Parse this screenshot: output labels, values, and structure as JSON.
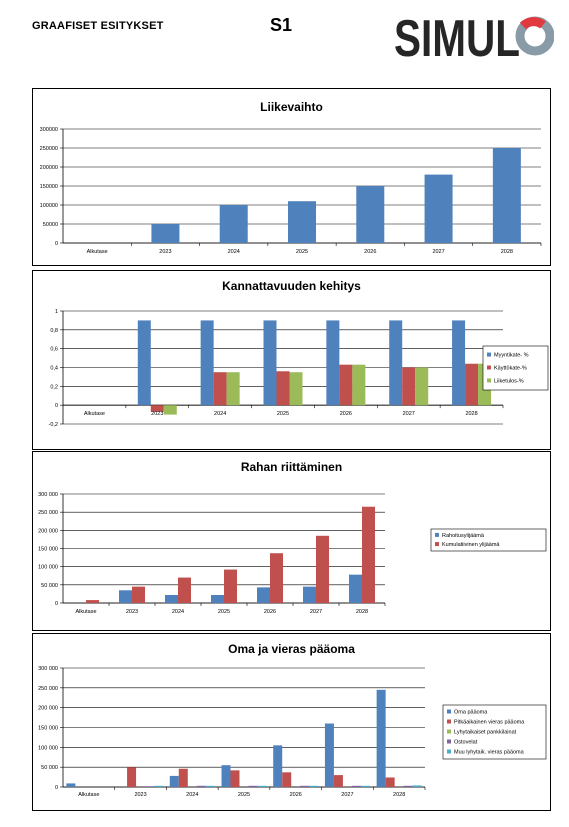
{
  "header": {
    "left_title": "GRAAFISET ESITYKSET",
    "center_title": "S1",
    "logo_text": "SIMUL",
    "logo_mark": "O"
  },
  "colors": {
    "blue": "#4F81BD",
    "red": "#C0504D",
    "green": "#9BBB59",
    "purple": "#8064A2",
    "cyan": "#4BACC6",
    "logo_text": "#262626",
    "logo_red": "#E2383F",
    "logo_gray": "#8A9BA8"
  },
  "chart_data": [
    {
      "type": "bar",
      "title": "Liikevaihto",
      "categories": [
        "Alkutase",
        "2023",
        "2024",
        "2025",
        "2026",
        "2027",
        "2028"
      ],
      "series": [
        {
          "values": [
            0,
            50000,
            100000,
            110000,
            150000,
            180000,
            250000
          ]
        }
      ],
      "yticks": [
        "0",
        "50000",
        "100000",
        "150000",
        "200000",
        "250000",
        "300000"
      ],
      "ylim": [
        0,
        300000
      ],
      "grid": true,
      "legend": "none"
    },
    {
      "type": "bar",
      "title": "Kannattavuuden kehitys",
      "categories": [
        "Alkutase",
        "2023",
        "2024",
        "2025",
        "2026",
        "2027",
        "2028"
      ],
      "series": [
        {
          "name": "Myyntikate- %",
          "values": [
            0,
            0.9,
            0.9,
            0.9,
            0.9,
            0.9,
            0.9
          ]
        },
        {
          "name": "Käyttökate-%",
          "values": [
            0,
            -0.07,
            0.35,
            0.36,
            0.43,
            0.4,
            0.44
          ]
        },
        {
          "name": "Liiketulos-%",
          "values": [
            0,
            -0.1,
            0.35,
            0.35,
            0.43,
            0.4,
            0.44
          ]
        }
      ],
      "yticks": [
        "-0,2",
        "0",
        "0,2",
        "0,4",
        "0,6",
        "0,8",
        "1"
      ],
      "ylim": [
        -0.2,
        1
      ],
      "grid": true,
      "legend": "right"
    },
    {
      "type": "bar",
      "title": "Rahan riittäminen",
      "categories": [
        "Alkutase",
        "2023",
        "2024",
        "2025",
        "2026",
        "2027",
        "2028"
      ],
      "series": [
        {
          "name": "Rahoitusylijäämä",
          "values": [
            0,
            35000,
            22000,
            22000,
            43000,
            45000,
            78000
          ]
        },
        {
          "name": "Kumulatiivinen ylijäämä",
          "values": [
            8000,
            45000,
            70000,
            92000,
            137000,
            185000,
            265000
          ]
        }
      ],
      "yticks": [
        "0",
        "50 000",
        "100 000",
        "150 000",
        "200 000",
        "250 000",
        "300 000"
      ],
      "ylim": [
        0,
        300000
      ],
      "grid": true,
      "legend": "right"
    },
    {
      "type": "bar",
      "title": "Oma ja vieras pääoma",
      "categories": [
        "Alkutase",
        "2023",
        "2024",
        "2025",
        "2026",
        "2027",
        "2028"
      ],
      "series": [
        {
          "name": "Oma pääoma",
          "values": [
            9000,
            0,
            28000,
            55000,
            105000,
            160000,
            245000
          ]
        },
        {
          "name": "Pitkäaikainen vieras pääoma",
          "values": [
            0,
            50000,
            46000,
            42000,
            37000,
            30000,
            24000
          ]
        },
        {
          "name": "Lyhytaikaiset pankkilainat",
          "values": [
            0,
            0,
            0,
            0,
            0,
            0,
            0
          ]
        },
        {
          "name": "Ostovelat",
          "values": [
            0,
            2000,
            3000,
            3000,
            3000,
            3000,
            3000
          ]
        },
        {
          "name": "Muu lyhytaik. vieras pääoma",
          "values": [
            0,
            3000,
            3000,
            3000,
            3000,
            3000,
            4000
          ]
        }
      ],
      "yticks": [
        "0",
        "50 000",
        "100 000",
        "150 000",
        "200 000",
        "250 000",
        "300 000"
      ],
      "ylim": [
        0,
        300000
      ],
      "grid": true,
      "legend": "right"
    }
  ]
}
